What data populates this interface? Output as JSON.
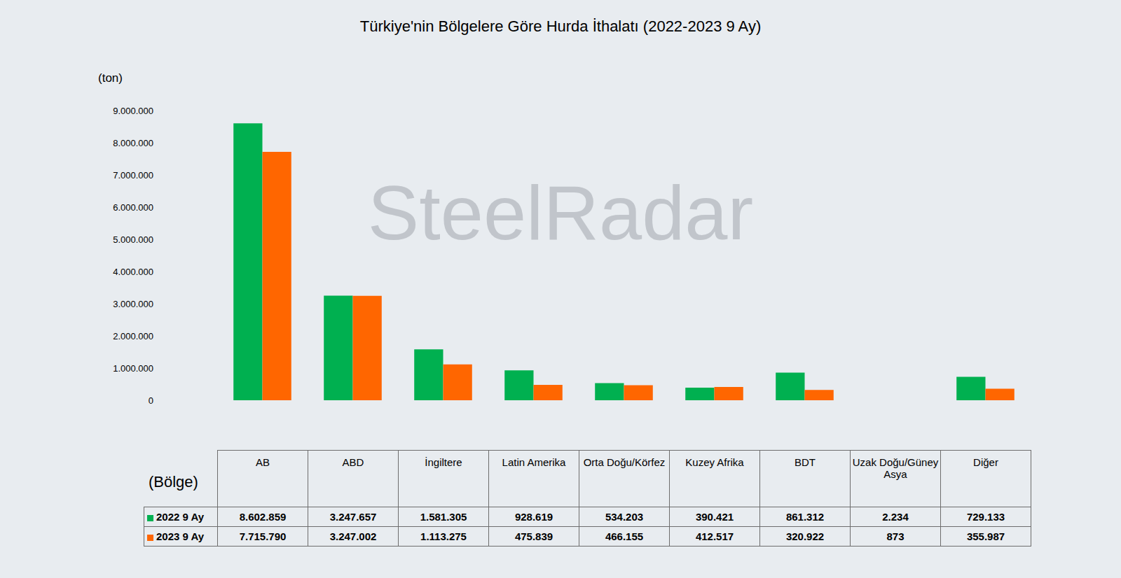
{
  "chart_data": {
    "type": "bar",
    "title": "Türkiye'nin Bölgelere Göre Hurda İthalatı (2022-2023 9 Ay)",
    "y_label": "(ton)",
    "x_label": "(Bölge)",
    "annotations": [
      "SteelRadar"
    ],
    "categories": [
      "AB",
      "ABD",
      "İngiltere",
      "Latin Amerika",
      "Orta Doğu/Körfez",
      "Kuzey Afrika",
      "BDT",
      "Uzak Doğu/Güney Asya",
      "Diğer"
    ],
    "series": [
      {
        "name": "2022 9 Ay",
        "color": "#00b050",
        "values": [
          8602859,
          3247657,
          1581305,
          928619,
          534203,
          390421,
          861312,
          2234,
          729133
        ],
        "value_labels": [
          "8.602.859",
          "3.247.657",
          "1.581.305",
          "928.619",
          "534.203",
          "390.421",
          "861.312",
          "2.234",
          "729.133"
        ]
      },
      {
        "name": "2023 9 Ay",
        "color": "#ff6600",
        "values": [
          7715790,
          3247002,
          1113275,
          475839,
          466155,
          412517,
          320922,
          873,
          355987
        ],
        "value_labels": [
          "7.715.790",
          "3.247.002",
          "1.113.275",
          "475.839",
          "466.155",
          "412.517",
          "320.922",
          "873",
          "355.987"
        ]
      }
    ],
    "ylim": [
      0,
      9000000
    ],
    "yticks": [
      0,
      {
        "value": 1000000,
        "label": "1.000.000"
      },
      {
        "value": 2000000,
        "label": "2.000.000"
      },
      {
        "value": 3000000,
        "label": "3.000.000"
      },
      {
        "value": 4000000,
        "label": "4.000.000"
      },
      {
        "value": 5000000,
        "label": "5.000.000"
      },
      {
        "value": 6000000,
        "label": "6.000.000"
      },
      {
        "value": 7000000,
        "label": "7.000.000"
      },
      {
        "value": 8000000,
        "label": "8.000.000"
      },
      {
        "value": 9000000,
        "label": "9.000.000"
      }
    ],
    "grid": false,
    "tick_labels": "y"
  }
}
